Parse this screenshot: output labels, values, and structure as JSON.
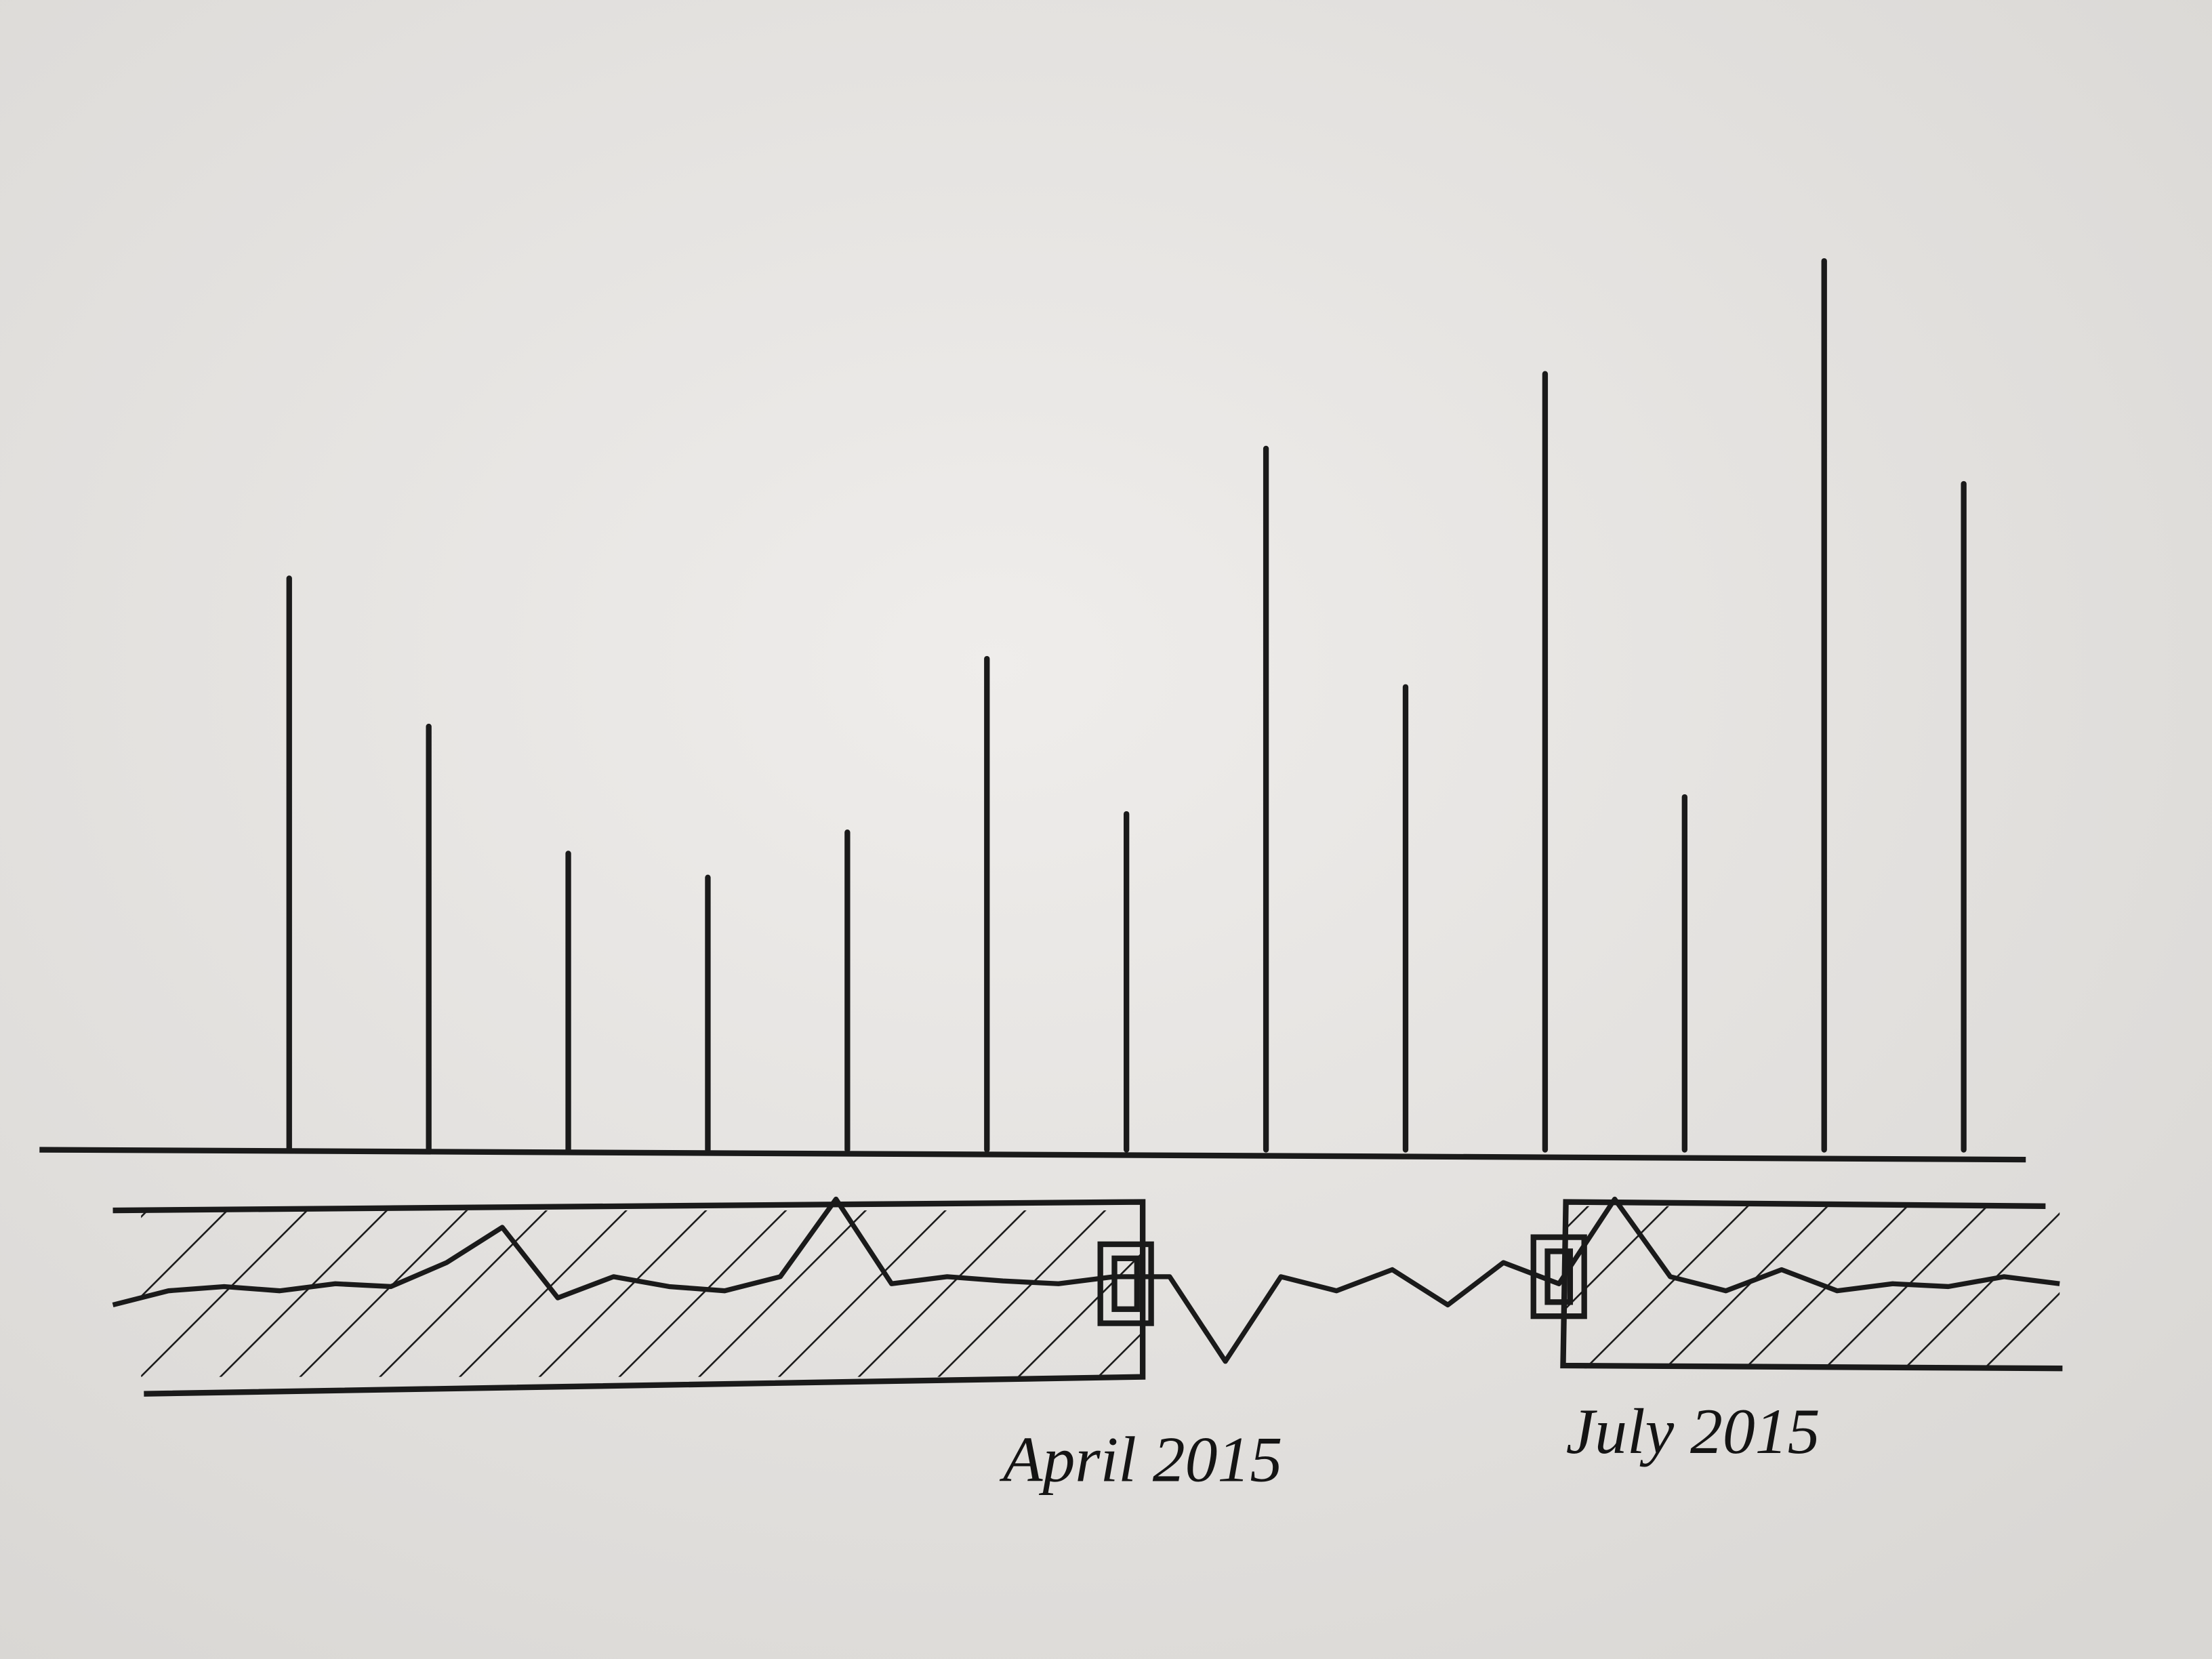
{
  "chart_data": {
    "type": "bar",
    "values": [
      405,
      300,
      210,
      193,
      225,
      348,
      238,
      497,
      328,
      550,
      250,
      630,
      472
    ],
    "color": "#1a1a1a",
    "ylim": [
      0,
      700
    ],
    "overview": {
      "type": "line",
      "values": [
        50,
        60,
        63,
        60,
        65,
        63,
        80,
        105,
        55,
        70,
        63,
        60,
        70,
        125,
        65,
        70,
        67,
        65,
        70,
        70,
        10,
        70,
        60,
        75,
        50,
        80,
        65,
        125,
        70,
        60,
        75,
        60,
        65,
        63,
        70,
        65
      ],
      "ylim": [
        0,
        140
      ]
    },
    "brush": {
      "start": "April 2015",
      "end": "July 2015"
    }
  }
}
